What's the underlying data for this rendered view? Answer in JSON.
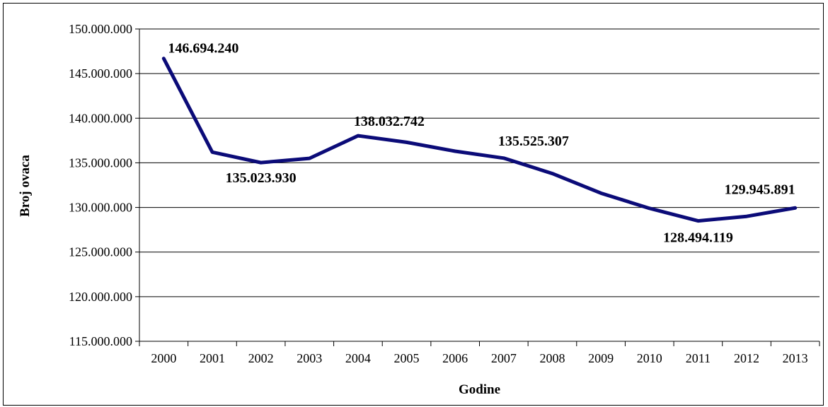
{
  "chart_data": {
    "type": "line",
    "title": "",
    "xlabel": "Godine",
    "ylabel": "Broj ovaca",
    "categories": [
      "2000",
      "2001",
      "2002",
      "2003",
      "2004",
      "2005",
      "2006",
      "2007",
      "2008",
      "2009",
      "2010",
      "2011",
      "2012",
      "2013"
    ],
    "series": [
      {
        "values": [
          146694240,
          136200000,
          135023930,
          135500000,
          138032742,
          137300000,
          136300000,
          135525307,
          133800000,
          131600000,
          129900000,
          128494119,
          129000000,
          129945891
        ],
        "color": "#0b0b78"
      }
    ],
    "data_labels": [
      {
        "index": 0,
        "text": "146.694.240"
      },
      {
        "index": 2,
        "text": "135.023.930"
      },
      {
        "index": 4,
        "text": "138.032.742"
      },
      {
        "index": 7,
        "text": "135.525.307"
      },
      {
        "index": 11,
        "text": "128.494.119"
      },
      {
        "index": 13,
        "text": "129.945.891"
      }
    ],
    "ylim": [
      115000000,
      150000000
    ],
    "yticks": [
      {
        "value": 150000000,
        "label": "150.000.000"
      },
      {
        "value": 145000000,
        "label": "145.000.000"
      },
      {
        "value": 140000000,
        "label": "140.000.000"
      },
      {
        "value": 135000000,
        "label": "135.000.000"
      },
      {
        "value": 130000000,
        "label": "130.000.000"
      },
      {
        "value": 125000000,
        "label": "125.000.000"
      },
      {
        "value": 120000000,
        "label": "120.000.000"
      },
      {
        "value": 115000000,
        "label": "115.000.000"
      }
    ],
    "grid": "horizontal",
    "legend": "none"
  }
}
